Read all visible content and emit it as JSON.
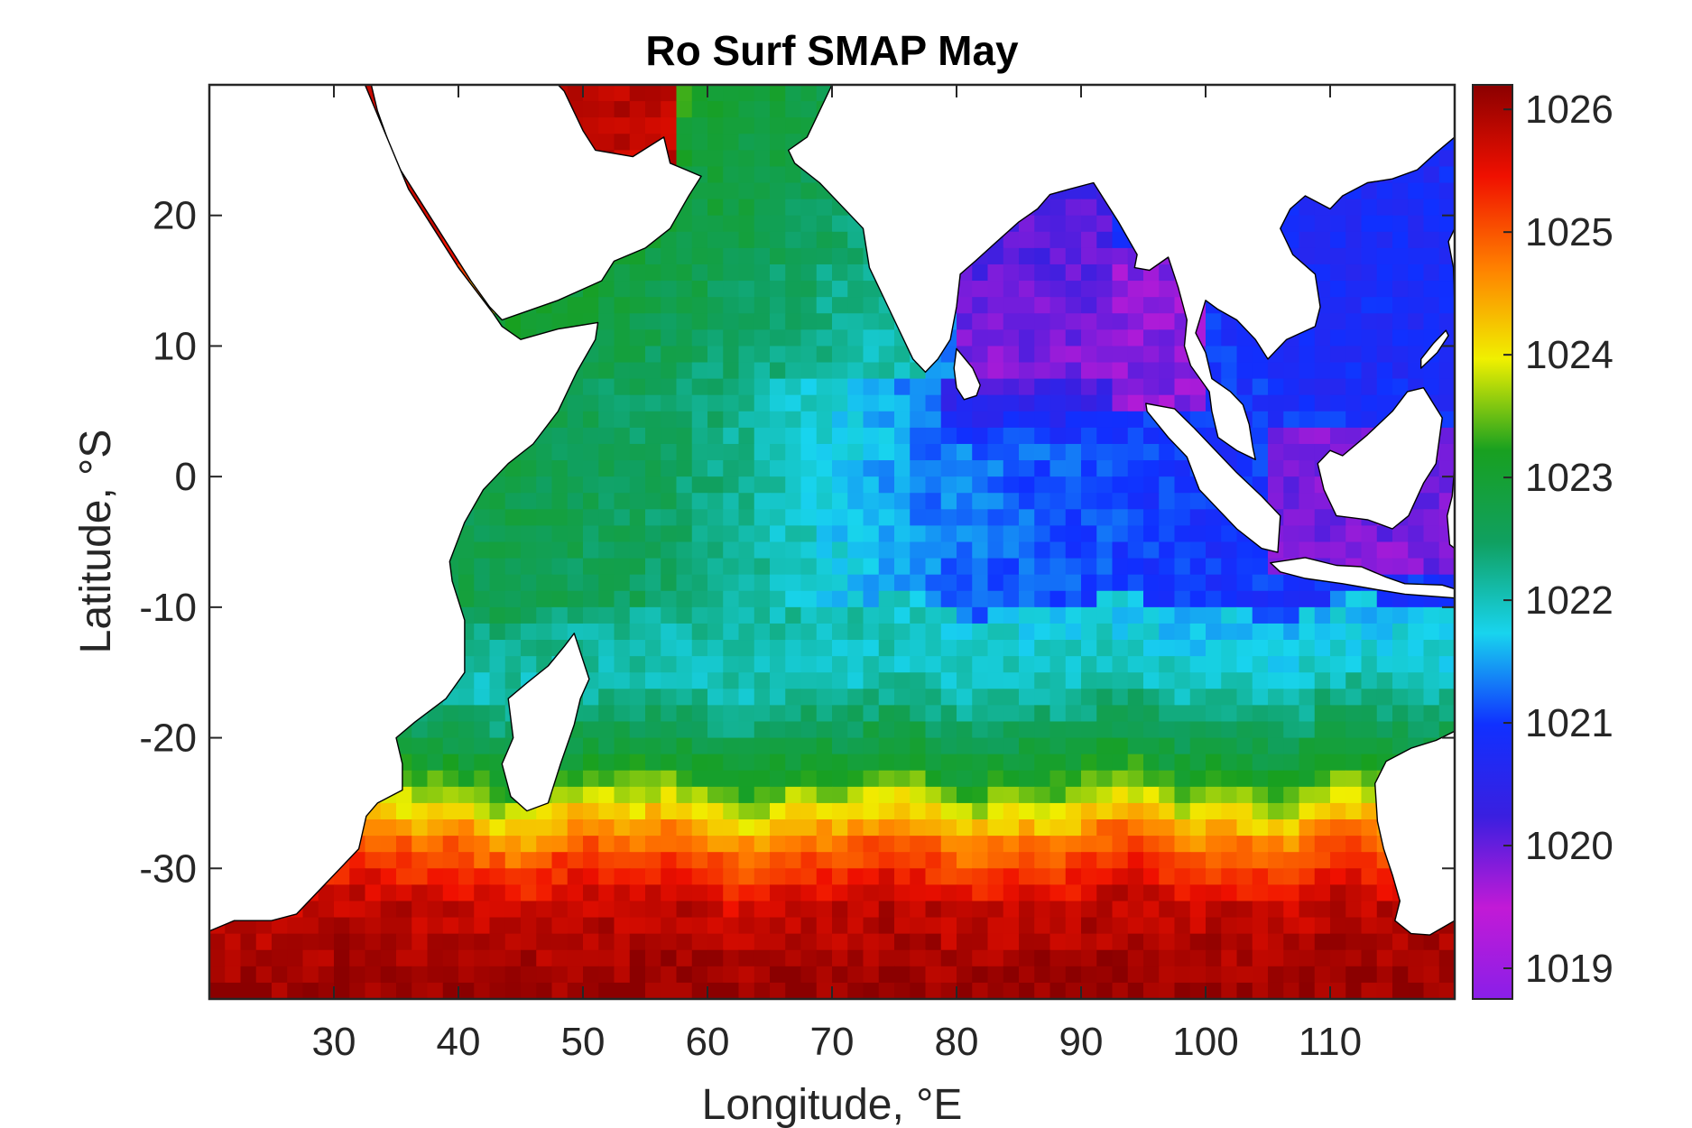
{
  "chart_data": {
    "type": "heatmap",
    "title": "Ro Surf SMAP May",
    "xlabel": "Longitude, °E",
    "ylabel": "Latitude, °S",
    "xlim": [
      20,
      120
    ],
    "ylim": [
      -40,
      30
    ],
    "x_ticks": [
      30,
      40,
      50,
      60,
      70,
      80,
      90,
      100,
      110
    ],
    "y_ticks": [
      20,
      10,
      0,
      -10,
      -20,
      -30
    ],
    "x_tick_labels": [
      "30",
      "40",
      "50",
      "60",
      "70",
      "80",
      "90",
      "100",
      "110"
    ],
    "y_tick_labels": [
      "20",
      "10",
      "0",
      "-10",
      "-20",
      "-30"
    ],
    "colorbar": {
      "range": [
        1018.75,
        1026.2
      ],
      "ticks": [
        1026,
        1025,
        1024,
        1023,
        1022,
        1021,
        1020,
        1019
      ],
      "tick_labels": [
        "1026",
        "1025",
        "1024",
        "1023",
        "1022",
        "1021",
        "1020",
        "1019"
      ],
      "colormap": [
        "#8a1fe8",
        "#c21ad6",
        "#3a1fe0",
        "#1030ff",
        "#18d4ee",
        "#10a060",
        "#18a020",
        "#f0f000",
        "#ff8000",
        "#f01000",
        "#8b0000"
      ]
    },
    "fields": {
      "southern_ocean_35S": 1025.8,
      "subtropical_30S": 1024.8,
      "front_22S": 1023.2,
      "south_tropics_15S": 1022.0,
      "equatorial_east_5S": 1021.0,
      "arabian_sea": 1022.6,
      "bay_of_bengal": 1020.0,
      "andaman_sea": 1019.8,
      "red_sea": 1025.6,
      "persian_gulf": 1025.8,
      "south_china_sea": 1020.8,
      "java_sea": 1019.9
    },
    "grid": false,
    "legend": "colorbar-right"
  }
}
